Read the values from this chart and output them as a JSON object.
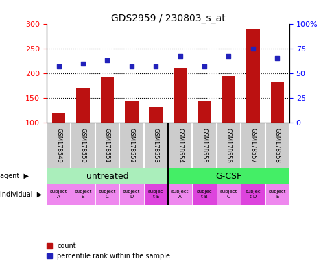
{
  "title": "GDS2959 / 230803_s_at",
  "samples": [
    "GSM178549",
    "GSM178550",
    "GSM178551",
    "GSM178552",
    "GSM178553",
    "GSM178554",
    "GSM178555",
    "GSM178556",
    "GSM178557",
    "GSM178558"
  ],
  "counts": [
    120,
    170,
    193,
    143,
    132,
    210,
    143,
    195,
    290,
    182
  ],
  "percentile_ranks": [
    57,
    60,
    63,
    57,
    57,
    67,
    57,
    67,
    75,
    65
  ],
  "ylim_left": [
    100,
    300
  ],
  "ylim_right": [
    0,
    100
  ],
  "yticks_left": [
    100,
    150,
    200,
    250,
    300
  ],
  "yticks_right": [
    0,
    25,
    50,
    75,
    100
  ],
  "bar_color": "#bb1111",
  "dot_color": "#2222bb",
  "agent_groups": [
    {
      "label": "untreated",
      "start": 0,
      "end": 5,
      "color": "#aaeebb"
    },
    {
      "label": "G-CSF",
      "start": 5,
      "end": 10,
      "color": "#44ee66"
    }
  ],
  "individual_labels": [
    "subject\nA",
    "subject\nB",
    "subject\nC",
    "subject\nD",
    "subjec\nt E",
    "subject\nA",
    "subjec\nt B",
    "subject\nC",
    "subjec\nt D",
    "subject\nE"
  ],
  "individual_colors_light": [
    "#ee88ee",
    "#ee88ee",
    "#ee88ee",
    "#ee88ee",
    "#dd44dd",
    "#ee88ee",
    "#dd44dd",
    "#ee88ee",
    "#dd44dd",
    "#ee88ee"
  ],
  "gsm_bg_color": "#cccccc",
  "background_color": "#ffffff",
  "label_fontsize": 8,
  "title_fontsize": 10,
  "gsm_fontsize": 6,
  "agent_fontsize": 9,
  "indiv_fontsize": 5,
  "legend_fontsize": 7
}
